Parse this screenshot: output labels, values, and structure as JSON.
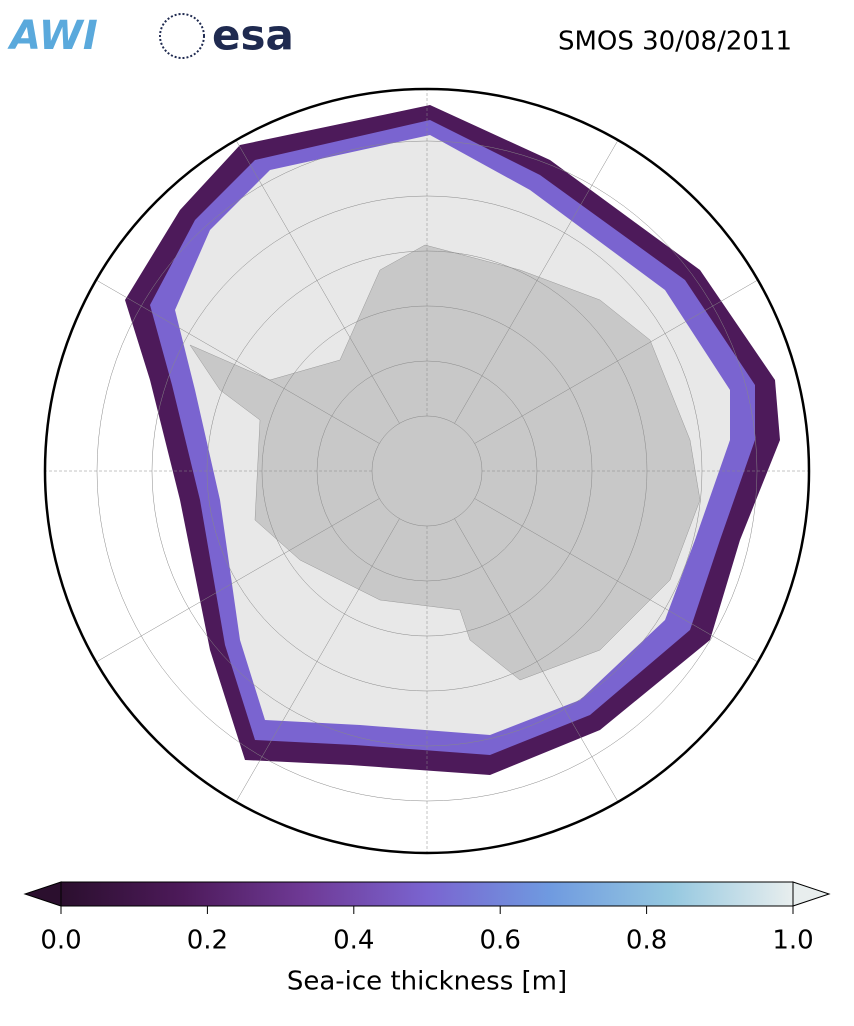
{
  "header": {
    "awi_logo": "AWI",
    "esa_logo": "esa",
    "title": "SMOS 30/08/2011"
  },
  "colorbar": {
    "label": "Sea-ice thickness [m]",
    "lim": [
      0,
      1
    ],
    "ticks": [
      {
        "value": 0,
        "label": "0.0"
      },
      {
        "value": 0.2,
        "label": "0.2"
      },
      {
        "value": 0.4,
        "label": "0.4"
      },
      {
        "value": 0.6,
        "label": "0.6"
      },
      {
        "value": 0.8,
        "label": "0.8"
      },
      {
        "value": 1,
        "label": "1.0"
      }
    ],
    "colors": [
      "#2b0f2e",
      "#4d1a5a",
      "#6f3a96",
      "#7a64d0",
      "#6f9ae0",
      "#95c8e0",
      "#e8eeee"
    ]
  }
}
